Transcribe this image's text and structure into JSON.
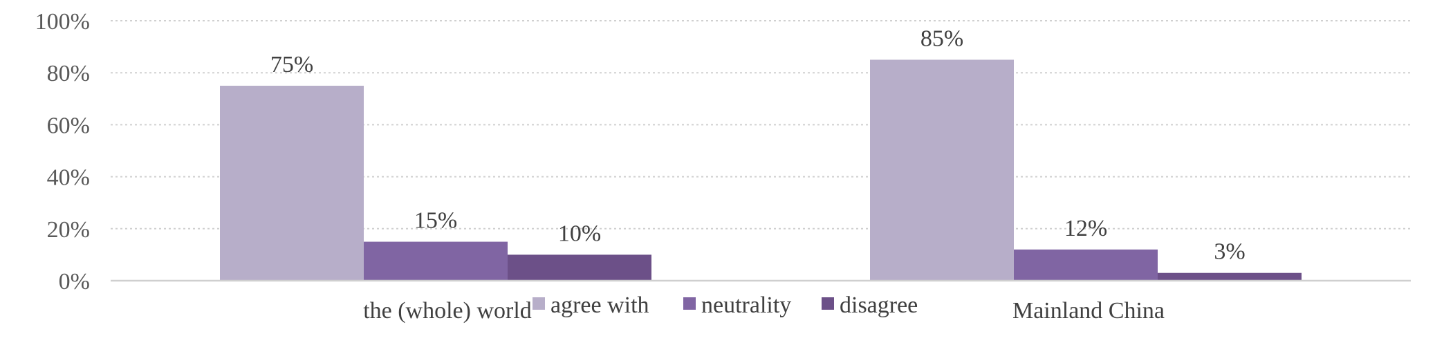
{
  "chart_data": {
    "type": "bar",
    "categories": [
      "the (whole) world",
      "Mainland China"
    ],
    "series": [
      {
        "name": "agree with",
        "values": [
          75,
          85
        ],
        "color": "#b7aec9",
        "labels": [
          "75%",
          "85%"
        ]
      },
      {
        "name": "neutrality",
        "values": [
          15,
          12
        ],
        "color": "#8065a3",
        "labels": [
          "15%",
          "12%"
        ]
      },
      {
        "name": "disagree",
        "values": [
          10,
          3
        ],
        "color": "#6c5088",
        "labels": [
          "10%",
          "3%"
        ]
      }
    ],
    "yticks": [
      "0%",
      "20%",
      "40%",
      "60%",
      "80%",
      "100%"
    ],
    "ylim": [
      0,
      100
    ],
    "grid": true,
    "legend_position": "bottom"
  }
}
